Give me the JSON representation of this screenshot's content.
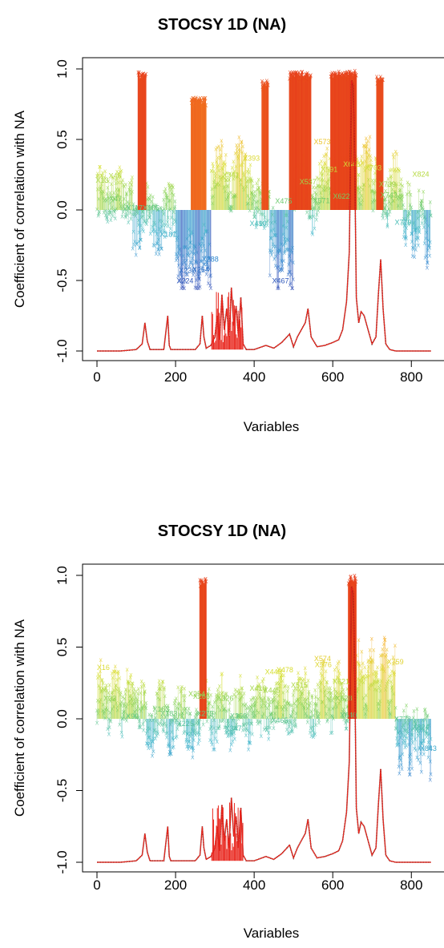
{
  "chart_data": [
    {
      "type": "line",
      "title": "STOCSY 1D (NA)",
      "xlabel": "Variables",
      "ylabel": "Coefficient of correlation with NA",
      "xlim": [
        0,
        860
      ],
      "ylim": [
        -1.0,
        1.0
      ],
      "xticks": [
        0,
        200,
        400,
        600,
        800
      ],
      "yticks": [
        -1.0,
        -0.5,
        0.0,
        0.5,
        1.0
      ],
      "xtick_labels": [
        "0",
        "200",
        "400",
        "600",
        "800"
      ],
      "ytick_labels": [
        "-1.0",
        "-0.5",
        "0.0",
        "0.5",
        "1.0"
      ],
      "grid": false,
      "legend": "none",
      "color_scale": [
        "#2f3db0",
        "#2e86cf",
        "#3cb8c8",
        "#79cf5c",
        "#d8e035",
        "#f5b52a",
        "#f06a1e",
        "#e63b1a"
      ],
      "annotations": [
        "X13",
        "X46",
        "X47",
        "X117X165",
        "X181",
        "X224",
        "X230",
        "X264",
        "X288",
        "X341",
        "X393",
        "X410",
        "X467",
        "X475",
        "X537",
        "X571",
        "X573",
        "X591",
        "X622",
        "X648",
        "X703",
        "X739",
        "X743",
        "X779",
        "X824"
      ],
      "series": [
        {
          "name": "",
          "color": "#e8231a",
          "x": [
            0,
            60,
            100,
            115,
            122,
            128,
            135,
            170,
            180,
            184,
            188,
            250,
            262,
            268,
            272,
            278,
            290,
            300,
            306,
            312,
            318,
            324,
            330,
            336,
            342,
            348,
            354,
            360,
            366,
            372,
            380,
            400,
            430,
            450,
            470,
            490,
            500,
            510,
            520,
            530,
            537,
            545,
            560,
            580,
            600,
            615,
            625,
            635,
            642,
            648,
            652,
            656,
            660,
            666,
            672,
            680,
            690,
            700,
            710,
            716,
            722,
            728,
            735,
            745,
            760,
            800,
            850
          ],
          "y": [
            -1.0,
            -1.0,
            -0.99,
            -0.95,
            -0.8,
            -0.93,
            -0.99,
            -0.99,
            -0.75,
            -0.96,
            -0.99,
            -0.99,
            -0.95,
            -0.75,
            -0.9,
            -0.98,
            -0.96,
            -0.9,
            -0.75,
            -0.92,
            -0.6,
            -0.85,
            -0.7,
            -0.9,
            -0.55,
            -0.82,
            -0.68,
            -0.9,
            -0.62,
            -0.95,
            -0.99,
            -0.99,
            -0.96,
            -0.98,
            -0.94,
            -0.88,
            -0.97,
            -0.9,
            -0.85,
            -0.8,
            -0.7,
            -0.9,
            -0.97,
            -0.96,
            -0.94,
            -0.92,
            -0.85,
            -0.65,
            -0.3,
            0.92,
            0.88,
            0.3,
            -0.62,
            -0.8,
            -0.72,
            -0.75,
            -0.85,
            -0.95,
            -0.9,
            -0.6,
            -0.35,
            -0.7,
            -0.95,
            -0.99,
            -1.0,
            -1.0,
            -1.0
          ]
        }
      ]
    },
    {
      "type": "line",
      "title": "STOCSY 1D (NA)",
      "xlabel": "Variables",
      "ylabel": "Coefficient of correlation with NA",
      "xlim": [
        0,
        860
      ],
      "ylim": [
        -1.0,
        1.0
      ],
      "xticks": [
        0,
        200,
        400,
        600,
        800
      ],
      "yticks": [
        -1.0,
        -0.5,
        0.0,
        0.5,
        1.0
      ],
      "xtick_labels": [
        "0",
        "200",
        "400",
        "600",
        "800"
      ],
      "ytick_labels": [
        "-1.0",
        "-0.5",
        "0.0",
        "0.5",
        "1.0"
      ],
      "grid": false,
      "legend": "none",
      "color_scale": [
        "#2f3db0",
        "#2e86cf",
        "#3cb8c8",
        "#79cf5c",
        "#d8e035",
        "#f5b52a",
        "#f06a1e",
        "#e63b1a"
      ],
      "annotations": [
        "X16",
        "X33",
        "X90",
        "X163",
        "X183",
        "X225",
        "X254",
        "X266",
        "X275",
        "X326",
        "X347",
        "X360",
        "X410",
        "X445",
        "X449",
        "X465",
        "X478",
        "X515",
        "X574",
        "X576",
        "X621",
        "X628",
        "X640",
        "X759",
        "X778",
        "X824",
        "X843"
      ],
      "series": [
        {
          "name": "",
          "color": "#e8231a",
          "x": [
            0,
            60,
            100,
            115,
            122,
            128,
            135,
            170,
            180,
            184,
            188,
            250,
            262,
            268,
            272,
            278,
            290,
            300,
            306,
            312,
            318,
            324,
            330,
            336,
            342,
            348,
            354,
            360,
            366,
            372,
            380,
            400,
            430,
            450,
            470,
            490,
            500,
            510,
            520,
            530,
            537,
            545,
            560,
            580,
            600,
            615,
            625,
            635,
            642,
            648,
            652,
            656,
            660,
            666,
            672,
            680,
            690,
            700,
            710,
            716,
            722,
            728,
            735,
            745,
            760,
            800,
            850
          ],
          "y": [
            -1.0,
            -1.0,
            -0.99,
            -0.95,
            -0.8,
            -0.93,
            -0.99,
            -0.99,
            -0.75,
            -0.96,
            -0.99,
            -0.99,
            -0.95,
            -0.75,
            -0.9,
            -0.98,
            -0.96,
            -0.9,
            -0.75,
            -0.92,
            -0.6,
            -0.85,
            -0.7,
            -0.9,
            -0.55,
            -0.82,
            -0.68,
            -0.9,
            -0.62,
            -0.95,
            -0.99,
            -0.99,
            -0.96,
            -0.98,
            -0.94,
            -0.88,
            -0.97,
            -0.9,
            -0.85,
            -0.8,
            -0.7,
            -0.9,
            -0.97,
            -0.96,
            -0.94,
            -0.92,
            -0.85,
            -0.65,
            -0.3,
            0.92,
            0.88,
            0.3,
            -0.62,
            -0.8,
            -0.72,
            -0.75,
            -0.85,
            -0.95,
            -0.9,
            -0.6,
            -0.35,
            -0.7,
            -0.95,
            -0.99,
            -1.0,
            -1.0,
            -1.0
          ]
        }
      ]
    }
  ]
}
